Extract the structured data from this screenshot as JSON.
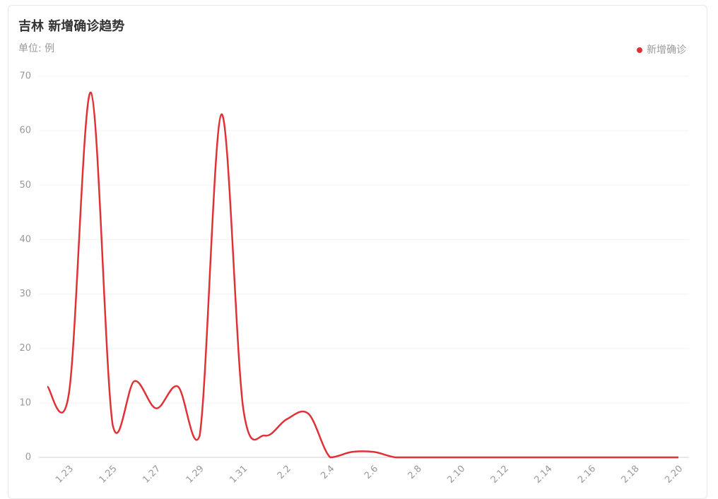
{
  "chart_data": {
    "type": "line",
    "title": "吉林 新增确诊趋势",
    "subtitle": "单位: 例",
    "categories": [
      null,
      "1.23",
      null,
      "1.25",
      null,
      "1.27",
      null,
      "1.29",
      null,
      "1.31",
      null,
      "2.2",
      null,
      "2.4",
      null,
      "2.6",
      null,
      "2.8",
      null,
      "2.10",
      null,
      "2.12",
      null,
      "2.14",
      null,
      "2.16",
      null,
      "2.18",
      null,
      "2.20"
    ],
    "series": [
      {
        "name": "新增确诊",
        "color": "#e03236",
        "values": [
          13,
          12,
          67,
          6,
          14,
          9,
          13,
          4,
          63,
          9,
          4,
          7,
          8,
          0,
          1,
          1,
          0,
          0,
          0,
          0,
          0,
          0,
          0,
          0,
          0,
          0,
          0,
          0,
          0,
          0
        ]
      }
    ],
    "ylim": [
      0,
      70
    ],
    "yticks": [
      0,
      10,
      20,
      30,
      40,
      50,
      60,
      70
    ],
    "grid": true,
    "legend": "top-right"
  }
}
